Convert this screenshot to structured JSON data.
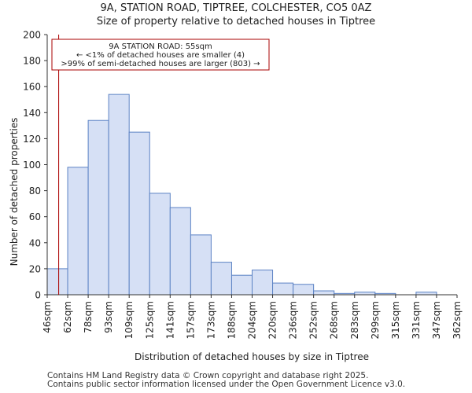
{
  "chart_data": {
    "type": "bar",
    "title": "9A, STATION ROAD, TIPTREE, COLCHESTER, CO5 0AZ",
    "subtitle": "Size of property relative to detached houses in Tiptree",
    "xlabel": "Distribution of detached houses by size in Tiptree",
    "ylabel": "Number of detached properties",
    "ylim": [
      0,
      200
    ],
    "yticks": [
      0,
      20,
      40,
      60,
      80,
      100,
      120,
      140,
      160,
      180,
      200
    ],
    "bin_edges": [
      "46sqm",
      "62sqm",
      "78sqm",
      "93sqm",
      "109sqm",
      "125sqm",
      "141sqm",
      "157sqm",
      "173sqm",
      "188sqm",
      "204sqm",
      "220sqm",
      "236sqm",
      "252sqm",
      "268sqm",
      "283sqm",
      "299sqm",
      "315sqm",
      "331sqm",
      "347sqm",
      "362sqm"
    ],
    "values": [
      20,
      98,
      134,
      154,
      125,
      78,
      67,
      46,
      25,
      15,
      19,
      9,
      8,
      3,
      1,
      2,
      1,
      0,
      2,
      0
    ],
    "bar_color": "#d6e0f5",
    "bar_edge_color": "#5b82c4",
    "marker": {
      "value_sqm": 55,
      "bin_position": 0.56,
      "color": "#aa0000",
      "annotation": [
        "9A STATION ROAD: 55sqm",
        "← <1% of detached houses are smaller (4)",
        ">99% of semi-detached houses are larger (803) →"
      ]
    }
  },
  "footer": {
    "line1": "Contains HM Land Registry data © Crown copyright and database right 2025.",
    "line2": "Contains public sector information licensed under the Open Government Licence v3.0."
  }
}
